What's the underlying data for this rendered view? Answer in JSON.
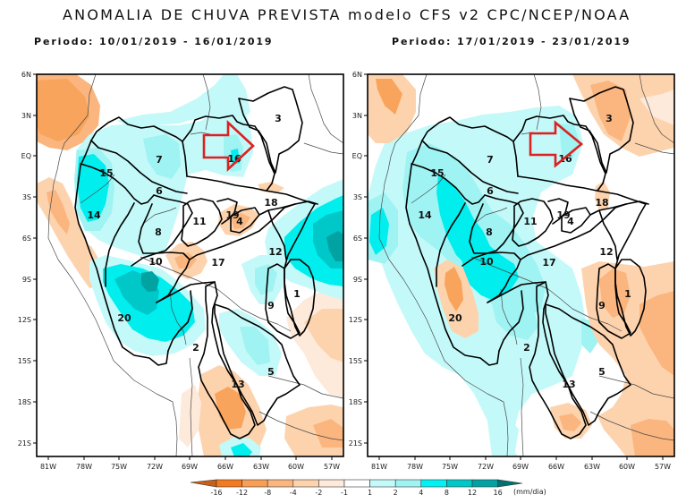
{
  "title": "ANOMALIA DE CHUVA PREVISTA modelo CFS v2 CPC/NCEP/NOAA",
  "panels": [
    {
      "period": "Periodo: 10/01/2019 - 16/01/2019",
      "basins": [
        "1",
        "2",
        "3",
        "4",
        "5",
        "6",
        "7",
        "8",
        "9",
        "10",
        "11",
        "12",
        "13",
        "14",
        "15",
        "16",
        "17",
        "18",
        "19",
        "20"
      ]
    },
    {
      "period": "Periodo: 17/01/2019 - 23/01/2019",
      "basins": [
        "1",
        "2",
        "3",
        "4",
        "5",
        "6",
        "7",
        "8",
        "9",
        "10",
        "11",
        "12",
        "13",
        "14",
        "15",
        "16",
        "17",
        "18",
        "19",
        "20"
      ]
    }
  ],
  "axes": {
    "lat_labels": [
      "6N",
      "3N",
      "EQ",
      "3S",
      "6S",
      "9S",
      "12S",
      "15S",
      "18S",
      "21S"
    ],
    "lon_labels": [
      "81W",
      "78W",
      "75W",
      "72W",
      "69W",
      "66W",
      "63W",
      "60W",
      "57W"
    ]
  },
  "legend": {
    "labels": [
      "-16",
      "-12",
      "-8",
      "-4",
      "-2",
      "-1",
      "1",
      "2",
      "4",
      "8",
      "12",
      "16"
    ],
    "units": "(mm/dia)",
    "colors": [
      "#c8601a",
      "#f57a1e",
      "#f99e55",
      "#fbb57e",
      "#fdd3ae",
      "#feeadb",
      "#ffffff",
      "#c4f9f9",
      "#a0f3f3",
      "#00f2f2",
      "#00c8c8",
      "#00a2a2",
      "#007070"
    ]
  },
  "annotation": {
    "arrow_color": "#dd2020",
    "arrow_icon": "right-arrow-outline"
  }
}
